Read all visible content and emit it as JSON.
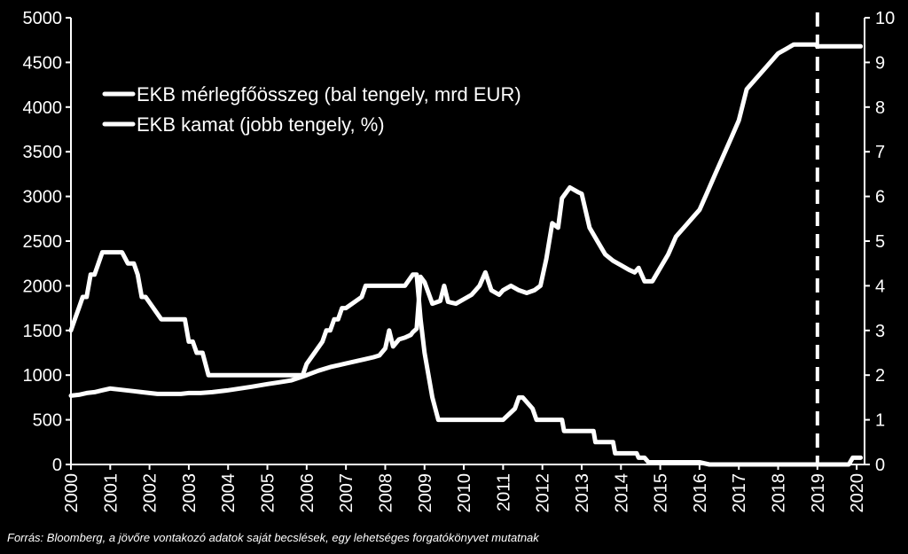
{
  "chart_data": {
    "type": "line",
    "source": "Forrás: Bloomberg, a jövőre vontakozó adatok saját becslések, egy lehetséges forgatókönyvet mutatnak",
    "x_ticks": [
      "2000",
      "2001",
      "2002",
      "2003",
      "2004",
      "2005",
      "2006",
      "2007",
      "2008",
      "2009",
      "2010",
      "2011",
      "2012",
      "2013",
      "2014",
      "2015",
      "2016",
      "2017",
      "2018",
      "2019",
      "2020"
    ],
    "y_left": {
      "ticks": [
        "0",
        "500",
        "1000",
        "1500",
        "2000",
        "2500",
        "3000",
        "3500",
        "4000",
        "4500",
        "5000"
      ],
      "lim": [
        0,
        5000
      ]
    },
    "y_right": {
      "ticks": [
        "0",
        "1",
        "2",
        "3",
        "4",
        "5",
        "6",
        "7",
        "8",
        "9",
        "10"
      ],
      "lim": [
        0,
        10
      ]
    },
    "xlim": [
      2000,
      2020.2
    ],
    "vline_x": 2019,
    "grid": false,
    "legend_position": "top-left",
    "colors": {
      "background": "#000000",
      "lines": "#ffffff"
    },
    "series": [
      {
        "name": "EKB mérlegfőösszeg (bal tengely, mrd EUR)",
        "axis": "left",
        "x": [
          2000,
          2000.2,
          2000.4,
          2000.6,
          2000.8,
          2001,
          2001.2,
          2001.4,
          2001.6,
          2001.8,
          2002,
          2002.2,
          2002.5,
          2002.8,
          2003,
          2003.3,
          2003.6,
          2004,
          2004.3,
          2004.6,
          2005,
          2005.3,
          2005.6,
          2006,
          2006.3,
          2006.6,
          2007,
          2007.3,
          2007.5,
          2007.7,
          2007.85,
          2008,
          2008.1,
          2008.2,
          2008.35,
          2008.5,
          2008.65,
          2008.7,
          2008.8,
          2008.9,
          2009,
          2009.2,
          2009.4,
          2009.5,
          2009.6,
          2009.8,
          2010,
          2010.2,
          2010.4,
          2010.55,
          2010.7,
          2010.9,
          2011,
          2011.2,
          2011.4,
          2011.6,
          2011.8,
          2011.95,
          2012,
          2012.1,
          2012.25,
          2012.4,
          2012.5,
          2012.7,
          2012.9,
          2013,
          2013.2,
          2013.4,
          2013.6,
          2013.8,
          2014,
          2014.2,
          2014.35,
          2014.45,
          2014.6,
          2014.8,
          2015,
          2015.2,
          2015.4,
          2015.6,
          2015.8,
          2016,
          2016.2,
          2016.4,
          2016.6,
          2016.8,
          2017,
          2017.2,
          2017.4,
          2017.5,
          2017.6,
          2017.8,
          2018,
          2018.2,
          2018.4,
          2018.6,
          2018.8,
          2018.95,
          2019,
          2019.5,
          2020,
          2020.1
        ],
        "y": [
          770,
          780,
          800,
          810,
          830,
          850,
          840,
          830,
          820,
          810,
          800,
          790,
          790,
          790,
          800,
          800,
          810,
          830,
          850,
          870,
          900,
          920,
          940,
          1000,
          1050,
          1090,
          1130,
          1160,
          1180,
          1200,
          1220,
          1300,
          1500,
          1320,
          1400,
          1420,
          1450,
          1480,
          1520,
          2100,
          2040,
          1800,
          1830,
          2000,
          1820,
          1800,
          1850,
          1900,
          2000,
          2150,
          1950,
          1900,
          1950,
          2000,
          1950,
          1920,
          1950,
          2000,
          2100,
          2300,
          2700,
          2650,
          2980,
          3100,
          3050,
          3030,
          2650,
          2500,
          2350,
          2280,
          2230,
          2180,
          2150,
          2200,
          2050,
          2050,
          2200,
          2350,
          2550,
          2650,
          2750,
          2850,
          3050,
          3250,
          3450,
          3650,
          3850,
          4200,
          4300,
          4350,
          4400,
          4500,
          4600,
          4650,
          4700,
          4700,
          4700,
          4700,
          4680,
          4680,
          4680,
          4680
        ],
        "y_unit": "mrd EUR"
      },
      {
        "name": "EKB kamat (jobb tengely, %)",
        "axis": "right",
        "x": [
          2000,
          2000.1,
          2000.2,
          2000.3,
          2000.4,
          2000.5,
          2000.6,
          2000.7,
          2000.8,
          2000.9,
          2001.3,
          2001.45,
          2001.6,
          2001.7,
          2001.8,
          2001.9,
          2002.3,
          2002.6,
          2002.9,
          2003,
          2003.1,
          2003.2,
          2003.35,
          2003.5,
          2004,
          2005.5,
          2005.9,
          2006,
          2006.2,
          2006.4,
          2006.5,
          2006.6,
          2006.7,
          2006.8,
          2006.9,
          2007,
          2007.4,
          2007.5,
          2008.5,
          2008.7,
          2008.8,
          2008.85,
          2008.9,
          2009,
          2009.1,
          2009.2,
          2009.35,
          2010,
          2011,
          2011.3,
          2011.4,
          2011.5,
          2011.75,
          2011.85,
          2011.95,
          2012.5,
          2012.55,
          2013.3,
          2013.35,
          2013.8,
          2013.85,
          2014.4,
          2014.45,
          2014.6,
          2014.7,
          2015,
          2016,
          2016.25,
          2017,
          2018,
          2019,
          2019.5,
          2019.8,
          2019.9,
          2020,
          2020.1
        ],
        "y": [
          3.0,
          3.25,
          3.5,
          3.75,
          3.75,
          4.25,
          4.25,
          4.5,
          4.75,
          4.75,
          4.75,
          4.5,
          4.5,
          4.25,
          3.75,
          3.75,
          3.25,
          3.25,
          3.25,
          2.75,
          2.75,
          2.5,
          2.5,
          2.0,
          2.0,
          2.0,
          2.0,
          2.25,
          2.5,
          2.75,
          3.0,
          3.0,
          3.25,
          3.25,
          3.5,
          3.5,
          3.75,
          4.0,
          4.0,
          4.25,
          4.25,
          3.75,
          3.25,
          2.5,
          2.0,
          1.5,
          1.0,
          1.0,
          1.0,
          1.25,
          1.5,
          1.5,
          1.25,
          1.0,
          1.0,
          1.0,
          0.75,
          0.75,
          0.5,
          0.5,
          0.25,
          0.25,
          0.15,
          0.15,
          0.05,
          0.05,
          0.05,
          0.0,
          0.0,
          0.0,
          0.0,
          0.0,
          0.0,
          0.15,
          0.15,
          0.15
        ],
        "y_unit": "%"
      }
    ]
  }
}
